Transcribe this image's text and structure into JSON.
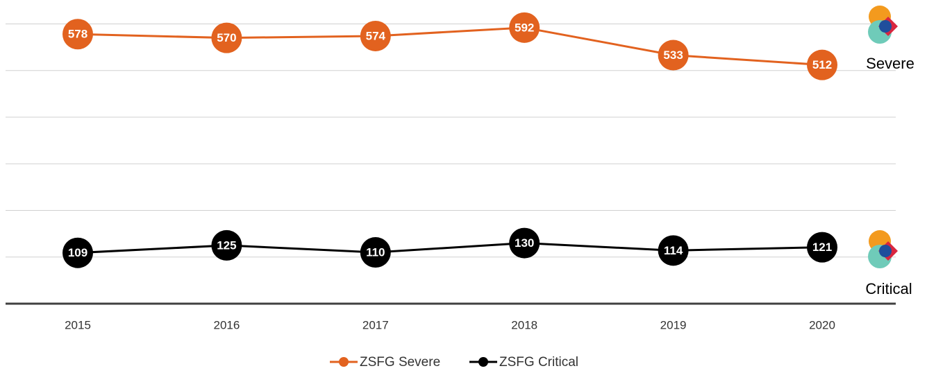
{
  "chart_data": {
    "type": "line",
    "categories": [
      "2015",
      "2016",
      "2017",
      "2018",
      "2019",
      "2020"
    ],
    "series": [
      {
        "name": "ZSFG Severe",
        "color": "#e2621f",
        "values": [
          578,
          570,
          574,
          592,
          533,
          512
        ]
      },
      {
        "name": "ZSFG Critical",
        "color": "#000000",
        "values": [
          109,
          125,
          110,
          130,
          114,
          121
        ]
      }
    ],
    "annotations": [
      "Severe",
      "Critical"
    ],
    "ylim": [
      0,
      620
    ],
    "yticks": [
      0,
      100,
      200,
      300,
      400,
      500,
      600
    ],
    "grid": true,
    "legend": "bottom"
  }
}
